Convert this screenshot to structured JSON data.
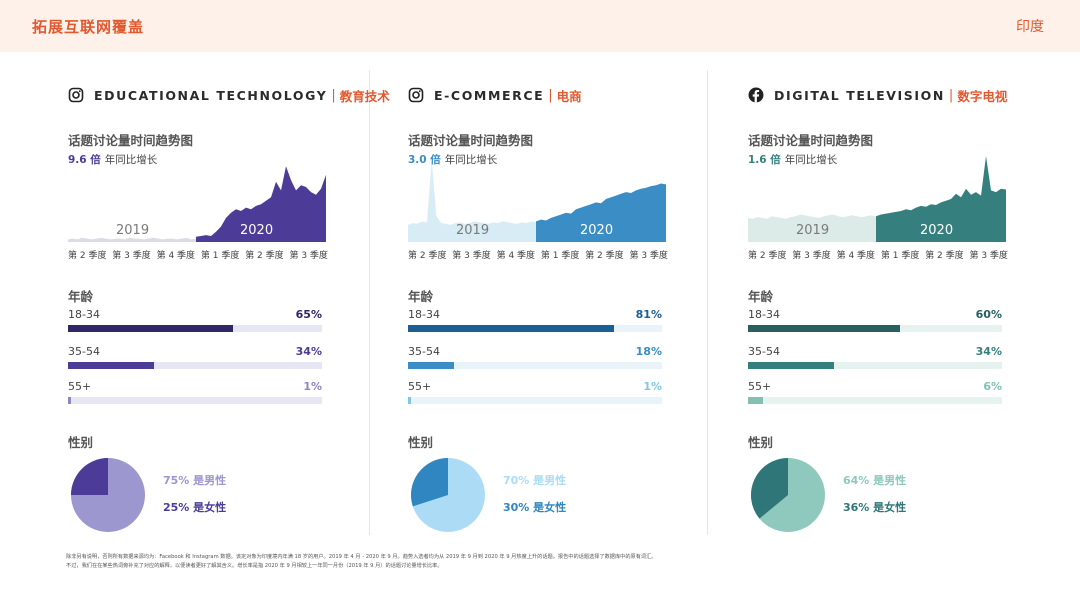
{
  "header": {
    "title": "拓展互联网覆盖",
    "country": "印度"
  },
  "panels": [
    {
      "icon": "instagram-icon",
      "title_en": "EDUCATIONAL TECHNOLOGY",
      "title_cn": "教育技术",
      "trend_label": "话题讨论量时间趋势图",
      "growth_value": "9.6 倍",
      "growth_text": "年同比增长",
      "year_a": "2019",
      "year_b": "2020",
      "quarters": [
        "第 2 季度",
        "第 3 季度",
        "第 4 季度",
        "第 1 季度",
        "第 2 季度",
        "第 3 季度"
      ],
      "age_label": "年龄",
      "ages": [
        {
          "name": "18-34",
          "pct": "65%",
          "value": 65
        },
        {
          "name": "35-54",
          "pct": "34%",
          "value": 34
        },
        {
          "name": "55+",
          "pct": "1%",
          "value": 1
        }
      ],
      "gender_label": "性别",
      "male_label": "75% 是男性",
      "female_label": "25% 是女性",
      "male_share": 75,
      "female_share": 25,
      "colors": {
        "dark": "#2f2766",
        "mid": "#4c3c97",
        "light": "#8c86c3",
        "pale": "#e7e6f4",
        "area_2019": "#dcdbe8",
        "male": "#9c97cf",
        "female": "#4c3c97"
      },
      "trend_2019": [
        3,
        4,
        3,
        5,
        4,
        3,
        4,
        5,
        4,
        3,
        4,
        4,
        3,
        5,
        4,
        4,
        3,
        4,
        5,
        4,
        3,
        4,
        4,
        3,
        4,
        5,
        3,
        4
      ],
      "trend_2020": [
        6,
        7,
        8,
        7,
        12,
        18,
        28,
        34,
        38,
        36,
        40,
        38,
        42,
        44,
        48,
        52,
        70,
        60,
        88,
        72,
        60,
        66,
        64,
        58,
        55,
        62,
        78
      ]
    },
    {
      "icon": "instagram-icon",
      "title_en": "E-COMMERCE",
      "title_cn": "电商",
      "trend_label": "话题讨论量时间趋势图",
      "growth_value": "3.0 倍",
      "growth_text": "年同比增长",
      "year_a": "2019",
      "year_b": "2020",
      "quarters": [
        "第 2 季度",
        "第 3 季度",
        "第 4 季度",
        "第 1 季度",
        "第 2 季度",
        "第 3 季度"
      ],
      "age_label": "年龄",
      "ages": [
        {
          "name": "18-34",
          "pct": "81%",
          "value": 81
        },
        {
          "name": "35-54",
          "pct": "18%",
          "value": 18
        },
        {
          "name": "55+",
          "pct": "1%",
          "value": 1
        }
      ],
      "gender_label": "性别",
      "male_label": "70% 是男性",
      "female_label": "30% 是女性",
      "male_share": 70,
      "female_share": 30,
      "colors": {
        "dark": "#1d5f94",
        "mid": "#3a8dc5",
        "light": "#7ec8e8",
        "pale": "#e9f4fa",
        "area_2019": "#d8ecf6",
        "male": "#acdcf5",
        "female": "#2f86c0"
      },
      "trend_2019": [
        20,
        22,
        21,
        24,
        23,
        95,
        30,
        22,
        21,
        20,
        22,
        23,
        21,
        22,
        24,
        23,
        22,
        21,
        23,
        22,
        24,
        23,
        22,
        21,
        23,
        22,
        24,
        23
      ],
      "trend_2020": [
        24,
        26,
        25,
        28,
        30,
        32,
        34,
        33,
        38,
        40,
        42,
        44,
        46,
        45,
        50,
        52,
        54,
        56,
        58,
        57,
        60,
        62,
        63,
        65,
        66,
        68,
        67
      ]
    },
    {
      "icon": "facebook-icon",
      "title_en": "DIGITAL TELEVISION",
      "title_cn": "数字电视",
      "trend_label": "话题讨论量时间趋势图",
      "growth_value": "1.6 倍",
      "growth_text": "年同比增长",
      "year_a": "2019",
      "year_b": "2020",
      "quarters": [
        "第 2 季度",
        "第 3 季度",
        "第 4 季度",
        "第 1 季度",
        "第 2 季度",
        "第 3 季度"
      ],
      "age_label": "年龄",
      "ages": [
        {
          "name": "18-34",
          "pct": "60%",
          "value": 60
        },
        {
          "name": "35-54",
          "pct": "34%",
          "value": 34
        },
        {
          "name": "55+",
          "pct": "6%",
          "value": 6
        }
      ],
      "gender_label": "性别",
      "male_label": "64% 是男性",
      "female_label": "36% 是女性",
      "male_share": 64,
      "female_share": 36,
      "colors": {
        "dark": "#285f61",
        "mid": "#35807f",
        "light": "#82c0b4",
        "pale": "#e6f2ef",
        "area_2019": "#dcebe7",
        "male": "#8fc8bc",
        "female": "#2e7677"
      },
      "trend_2019": [
        28,
        27,
        29,
        28,
        27,
        30,
        29,
        28,
        27,
        29,
        30,
        32,
        31,
        30,
        29,
        28,
        30,
        31,
        32,
        30,
        29,
        30,
        31,
        30,
        29,
        30,
        31,
        30
      ],
      "trend_2020": [
        30,
        32,
        33,
        34,
        35,
        36,
        38,
        37,
        40,
        42,
        41,
        44,
        43,
        46,
        48,
        50,
        56,
        52,
        62,
        55,
        58,
        54,
        100,
        60,
        58,
        62,
        61
      ]
    }
  ],
  "footnote_line1": "除非另有说明，否则所有数据来源均为：Facebook 和 Instagram 数据。该定对象为印度境内年满 18 岁的用户。2019 年 4 月 - 2020 年 9 月。趋势入选者均为从 2019 年 9 月到 2020 年 9 月热度上升的话题。报告中的话题选择了数据库中的原有词汇。",
  "footnote_line2": "不过，我们在在某些热词旁补充了对应的解释，以便读者更好了解其含义。增长率是指 2020 年 9 月相较上一年同一月份（2019 年 9 月）的话题讨论量增长比率。"
}
